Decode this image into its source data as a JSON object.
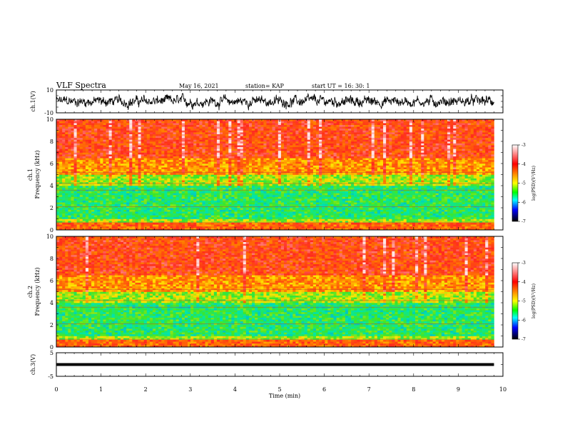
{
  "header": {
    "title": "VLF Spectra",
    "date": "May 16, 2021",
    "station": "station= KAP",
    "start": "start  UT  =   16: 30: 1"
  },
  "colors": {
    "spectrogram_low": "#00cc44",
    "spectrogram_mid": "#ffd700",
    "spectrogram_high": "#ff2b1a",
    "colorbar": [
      "#ffffff",
      "#ff9999",
      "#ff0000",
      "#ff8800",
      "#ffff00",
      "#00ff00",
      "#00ffff",
      "#0000ff",
      "#000000"
    ]
  },
  "chart_data": [
    {
      "type": "line",
      "id": "ch1",
      "ylabel": "ch.1(V)",
      "ylim": [
        -10,
        10
      ],
      "yticks": [
        "10",
        "-10"
      ],
      "xlim": [
        0,
        10
      ],
      "series": [
        {
          "values_note_range": [
            -8,
            8
          ]
        }
      ]
    },
    {
      "type": "heatmap",
      "id": "ch1-spectrogram",
      "ylabel": "ch.1 Frequency (kHz)",
      "ylim": [
        0,
        10
      ],
      "yticks": [
        "0",
        "2",
        "4",
        "6",
        "8",
        "10"
      ],
      "xlim": [
        0,
        9.8
      ],
      "bands_khz": [
        {
          "from": 0,
          "to": 0.6,
          "level": -4
        },
        {
          "from": 0.6,
          "to": 1.0,
          "level": -5
        },
        {
          "from": 1.0,
          "to": 4.0,
          "level": -5.5
        },
        {
          "from": 4.0,
          "to": 5.0,
          "level": -5
        },
        {
          "from": 5.0,
          "to": 6.5,
          "level": -4.3
        },
        {
          "from": 6.5,
          "to": 10,
          "level": -3.8
        }
      ],
      "colorbar": {
        "label": "log(PSD)(V²/Hz)",
        "ticks": [
          "-3",
          "-4",
          "-5",
          "-6",
          "-7"
        ],
        "range": [
          -7,
          -3
        ]
      }
    },
    {
      "type": "heatmap",
      "id": "ch2-spectrogram",
      "ylabel": "ch.2 Frequency (kHz)",
      "ylim": [
        0,
        10
      ],
      "yticks": [
        "0",
        "2",
        "4",
        "6",
        "8",
        "10"
      ],
      "xlim": [
        0,
        9.8
      ],
      "bands_khz": [
        {
          "from": 0,
          "to": 0.6,
          "level": -4
        },
        {
          "from": 0.6,
          "to": 1.0,
          "level": -5
        },
        {
          "from": 1.0,
          "to": 4.0,
          "level": -5.5
        },
        {
          "from": 4.0,
          "to": 5.0,
          "level": -5
        },
        {
          "from": 5.0,
          "to": 6.5,
          "level": -4.3
        },
        {
          "from": 6.5,
          "to": 10,
          "level": -3.8
        }
      ],
      "colorbar": {
        "label": "log(PSD)(V²/Hz)",
        "ticks": [
          "-3",
          "-4",
          "-5",
          "-6",
          "-7"
        ],
        "range": [
          -7,
          -3
        ]
      }
    },
    {
      "type": "line",
      "id": "ch3",
      "ylabel": "ch.3(V)",
      "ylim": [
        -5,
        5
      ],
      "yticks": [
        "5",
        "-5"
      ],
      "xlim": [
        0,
        10
      ],
      "series": [
        {
          "values_note_range": [
            -1,
            1
          ]
        }
      ]
    }
  ],
  "xaxis": {
    "label": "Time  (min)",
    "ticks": [
      "0",
      "1",
      "2",
      "3",
      "4",
      "5",
      "6",
      "7",
      "8",
      "9",
      "10"
    ],
    "range": [
      0,
      10
    ]
  }
}
